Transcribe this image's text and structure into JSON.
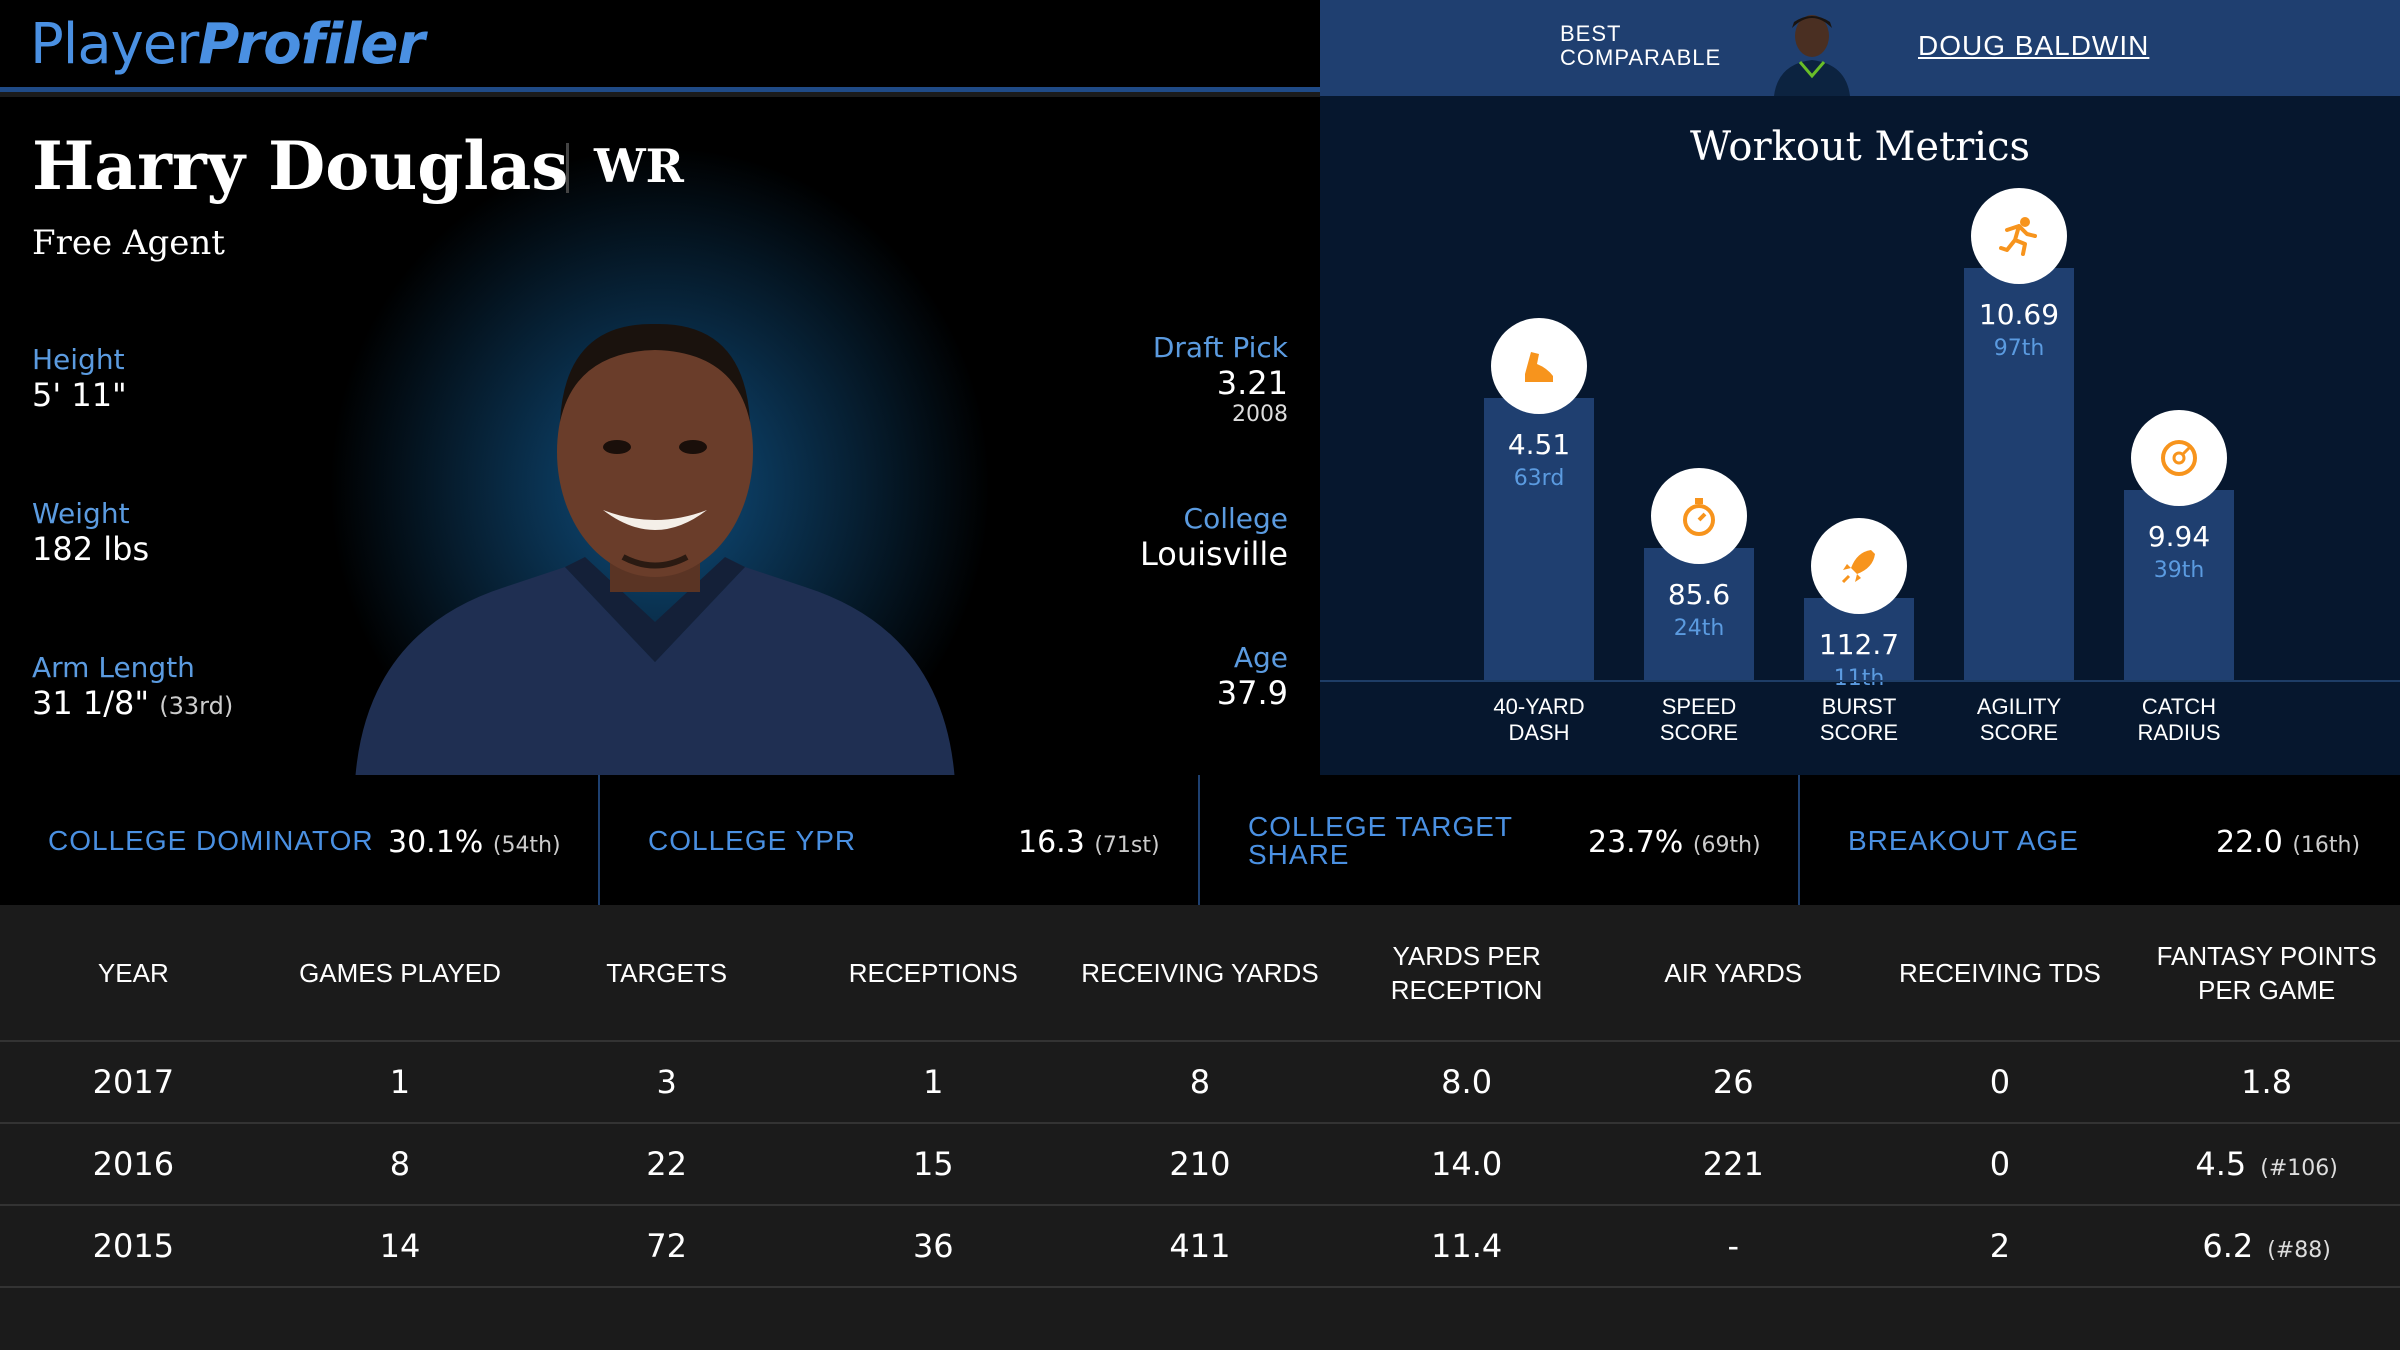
{
  "header": {
    "logo_part1": "Player",
    "logo_part2": "Profiler",
    "best_comparable_label": "BEST COMPARABLE",
    "best_comparable_name": "DOUG BALDWIN"
  },
  "player": {
    "name": "Harry Douglas",
    "position": "WR",
    "team": "Free Agent",
    "height_label": "Height",
    "height": "5' 11\"",
    "weight_label": "Weight",
    "weight": "182 lbs",
    "arm_label": "Arm Length",
    "arm": "31 1/8\"",
    "arm_rank": "(33rd)",
    "draft_label": "Draft Pick",
    "draft_pick": "3.21",
    "draft_year": "2008",
    "college_label": "College",
    "college": "Louisville",
    "age_label": "Age",
    "age": "37.9"
  },
  "workout": {
    "title": "Workout Metrics",
    "metrics": [
      {
        "label": "40-YARD DASH",
        "value": "4.51",
        "pct": "63rd",
        "percentile": 63,
        "icon": "shoe-icon"
      },
      {
        "label": "SPEED SCORE",
        "value": "85.6",
        "pct": "24th",
        "percentile": 24,
        "icon": "stopwatch-icon"
      },
      {
        "label": "BURST SCORE",
        "value": "112.7",
        "pct": "11th",
        "percentile": 11,
        "icon": "rocket-icon"
      },
      {
        "label": "AGILITY SCORE",
        "value": "10.69",
        "pct": "97th",
        "percentile": 97,
        "icon": "running-icon"
      },
      {
        "label": "CATCH RADIUS",
        "value": "9.94",
        "pct": "39th",
        "percentile": 39,
        "icon": "target-icon"
      }
    ]
  },
  "college_stats": [
    {
      "label": "COLLEGE DOMINATOR",
      "value": "30.1%",
      "rank": "(54th)"
    },
    {
      "label": "COLLEGE YPR",
      "value": "16.3",
      "rank": "(71st)"
    },
    {
      "label": "COLLEGE TARGET SHARE",
      "value": "23.7%",
      "rank": "(69th)"
    },
    {
      "label": "BREAKOUT AGE",
      "value": "22.0",
      "rank": "(16th)"
    }
  ],
  "table": {
    "headers": [
      "YEAR",
      "GAMES PLAYED",
      "TARGETS",
      "RECEPTIONS",
      "RECEIVING YARDS",
      "YARDS PER RECEPTION",
      "AIR YARDS",
      "RECEIVING TDS",
      "FANTASY POINTS PER GAME"
    ],
    "rows": [
      {
        "cells": [
          "2017",
          "1",
          "3",
          "1",
          "8",
          "8.0",
          "26",
          "0",
          "1.8"
        ],
        "rank": ""
      },
      {
        "cells": [
          "2016",
          "8",
          "22",
          "15",
          "210",
          "14.0",
          "221",
          "0",
          "4.5"
        ],
        "rank": "(#106)"
      },
      {
        "cells": [
          "2015",
          "14",
          "72",
          "36",
          "411",
          "11.4",
          "-",
          "2",
          "6.2"
        ],
        "rank": "(#88)"
      }
    ]
  },
  "colors": {
    "accent": "#4a90e2",
    "icon_orange": "#f7941d",
    "bar": "#1f3f70"
  }
}
